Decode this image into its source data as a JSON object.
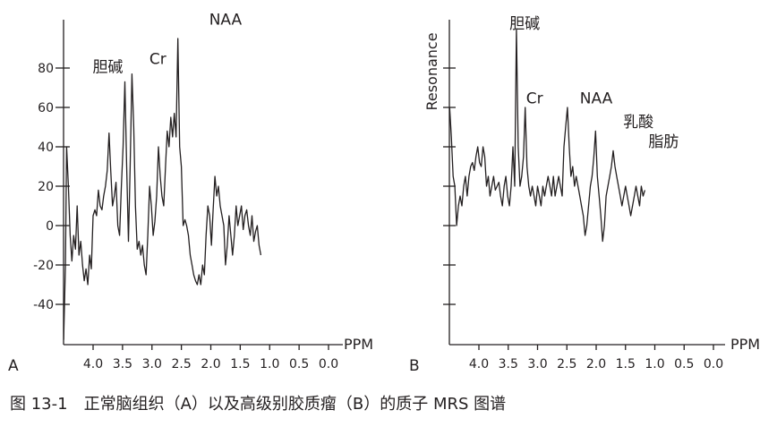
{
  "chart_data": [
    {
      "type": "line",
      "panel_label": "A",
      "xlabel": "PPM",
      "ylabel": "",
      "x_tick_labels": [
        "4.0",
        "3.5",
        "3.0",
        "2.5",
        "2.0",
        "1.5",
        "1.0",
        "0.5",
        "0.0"
      ],
      "y_tick_labels": [
        "80",
        "60",
        "40",
        "20",
        "0",
        "-20",
        "-40"
      ],
      "x_reversed": true,
      "xlim": [
        4.5,
        0.0
      ],
      "ylim": [
        -60,
        105
      ],
      "grid": false,
      "annotations": [
        {
          "text": "胆碱",
          "x": 3.75,
          "y": 78
        },
        {
          "text": "Cr",
          "x": 2.9,
          "y": 82
        },
        {
          "text": "NAA",
          "x": 1.75,
          "y": 102
        }
      ],
      "series": [
        {
          "values": [
            [
              4.5,
              -58
            ],
            [
              4.47,
              -20
            ],
            [
              4.45,
              40
            ],
            [
              4.42,
              20
            ],
            [
              4.39,
              -5
            ],
            [
              4.36,
              -18
            ],
            [
              4.33,
              -5
            ],
            [
              4.3,
              -12
            ],
            [
              4.27,
              10
            ],
            [
              4.24,
              -15
            ],
            [
              4.21,
              -8
            ],
            [
              4.18,
              -20
            ],
            [
              4.15,
              -28
            ],
            [
              4.12,
              -22
            ],
            [
              4.09,
              -30
            ],
            [
              4.06,
              -15
            ],
            [
              4.03,
              -22
            ],
            [
              4.0,
              5
            ],
            [
              3.97,
              8
            ],
            [
              3.94,
              5
            ],
            [
              3.91,
              18
            ],
            [
              3.88,
              10
            ],
            [
              3.85,
              8
            ],
            [
              3.82,
              15
            ],
            [
              3.79,
              20
            ],
            [
              3.76,
              28
            ],
            [
              3.73,
              47
            ],
            [
              3.7,
              28
            ],
            [
              3.67,
              10
            ],
            [
              3.64,
              15
            ],
            [
              3.61,
              22
            ],
            [
              3.58,
              0
            ],
            [
              3.55,
              -5
            ],
            [
              3.52,
              20
            ],
            [
              3.49,
              40
            ],
            [
              3.46,
              73
            ],
            [
              3.43,
              30
            ],
            [
              3.4,
              -8
            ],
            [
              3.37,
              30
            ],
            [
              3.34,
              77
            ],
            [
              3.31,
              50
            ],
            [
              3.28,
              10
            ],
            [
              3.25,
              -12
            ],
            [
              3.22,
              -8
            ],
            [
              3.19,
              -15
            ],
            [
              3.16,
              -10
            ],
            [
              3.13,
              -20
            ],
            [
              3.1,
              -25
            ],
            [
              3.07,
              -5
            ],
            [
              3.04,
              20
            ],
            [
              3.01,
              10
            ],
            [
              2.98,
              -5
            ],
            [
              2.95,
              2
            ],
            [
              2.92,
              15
            ],
            [
              2.89,
              40
            ],
            [
              2.86,
              25
            ],
            [
              2.83,
              15
            ],
            [
              2.8,
              10
            ],
            [
              2.77,
              30
            ],
            [
              2.74,
              48
            ],
            [
              2.71,
              40
            ],
            [
              2.68,
              55
            ],
            [
              2.65,
              45
            ],
            [
              2.62,
              57
            ],
            [
              2.59,
              45
            ],
            [
              2.56,
              95
            ],
            [
              2.53,
              40
            ],
            [
              2.5,
              30
            ],
            [
              2.47,
              0
            ],
            [
              2.44,
              3
            ],
            [
              2.41,
              0
            ],
            [
              2.38,
              -5
            ],
            [
              2.35,
              -15
            ],
            [
              2.32,
              -20
            ],
            [
              2.29,
              -25
            ],
            [
              2.26,
              -28
            ],
            [
              2.23,
              -30
            ],
            [
              2.2,
              -25
            ],
            [
              2.17,
              -30
            ],
            [
              2.14,
              -20
            ],
            [
              2.11,
              -25
            ],
            [
              2.08,
              -5
            ],
            [
              2.05,
              10
            ],
            [
              2.02,
              5
            ],
            [
              1.99,
              -10
            ],
            [
              1.96,
              8
            ],
            [
              1.93,
              25
            ],
            [
              1.9,
              15
            ],
            [
              1.87,
              20
            ],
            [
              1.84,
              10
            ],
            [
              1.81,
              5
            ],
            [
              1.78,
              0
            ],
            [
              1.75,
              -20
            ],
            [
              1.72,
              -10
            ],
            [
              1.69,
              5
            ],
            [
              1.66,
              -5
            ],
            [
              1.63,
              -15
            ],
            [
              1.6,
              -5
            ],
            [
              1.57,
              10
            ],
            [
              1.54,
              0
            ],
            [
              1.51,
              5
            ],
            [
              1.48,
              10
            ],
            [
              1.45,
              -2
            ],
            [
              1.42,
              5
            ],
            [
              1.39,
              8
            ],
            [
              1.36,
              0
            ],
            [
              1.33,
              -5
            ],
            [
              1.3,
              5
            ],
            [
              1.27,
              -8
            ],
            [
              1.24,
              -3
            ],
            [
              1.21,
              0
            ],
            [
              1.18,
              -10
            ],
            [
              1.15,
              -15
            ]
          ]
        }
      ]
    },
    {
      "type": "line",
      "panel_label": "B",
      "xlabel": "PPM",
      "ylabel": "Resonance",
      "x_tick_labels": [
        "4.0",
        "3.5",
        "3.0",
        "2.5",
        "2.0",
        "1.5",
        "1.0",
        "0.5",
        "0.0"
      ],
      "y_tick_labels": [],
      "x_reversed": true,
      "xlim": [
        4.5,
        0.0
      ],
      "grid": false,
      "annotations": [
        {
          "text": "胆碱",
          "x": 3.22,
          "y": 100
        },
        {
          "text": "Cr",
          "x": 3.05,
          "y": 62
        },
        {
          "text": "NAA",
          "x": 2.0,
          "y": 62
        },
        {
          "text": "乳酸",
          "x": 1.28,
          "y": 50
        },
        {
          "text": "脂肪",
          "x": 0.85,
          "y": 40
        }
      ],
      "series": [
        {
          "values": [
            [
              4.5,
              60
            ],
            [
              4.47,
              45
            ],
            [
              4.44,
              25
            ],
            [
              4.41,
              20
            ],
            [
              4.38,
              0
            ],
            [
              4.35,
              10
            ],
            [
              4.32,
              15
            ],
            [
              4.29,
              10
            ],
            [
              4.26,
              20
            ],
            [
              4.23,
              25
            ],
            [
              4.2,
              15
            ],
            [
              4.17,
              25
            ],
            [
              4.14,
              30
            ],
            [
              4.11,
              32
            ],
            [
              4.08,
              28
            ],
            [
              4.05,
              35
            ],
            [
              4.02,
              40
            ],
            [
              3.99,
              32
            ],
            [
              3.96,
              30
            ],
            [
              3.93,
              40
            ],
            [
              3.9,
              35
            ],
            [
              3.87,
              20
            ],
            [
              3.84,
              25
            ],
            [
              3.81,
              15
            ],
            [
              3.78,
              20
            ],
            [
              3.75,
              25
            ],
            [
              3.72,
              18
            ],
            [
              3.69,
              20
            ],
            [
              3.66,
              22
            ],
            [
              3.63,
              15
            ],
            [
              3.6,
              10
            ],
            [
              3.57,
              20
            ],
            [
              3.54,
              25
            ],
            [
              3.51,
              15
            ],
            [
              3.48,
              10
            ],
            [
              3.45,
              20
            ],
            [
              3.42,
              40
            ],
            [
              3.39,
              20
            ],
            [
              3.36,
              100
            ],
            [
              3.33,
              40
            ],
            [
              3.3,
              20
            ],
            [
              3.27,
              25
            ],
            [
              3.24,
              35
            ],
            [
              3.21,
              60
            ],
            [
              3.18,
              30
            ],
            [
              3.15,
              20
            ],
            [
              3.12,
              15
            ],
            [
              3.09,
              20
            ],
            [
              3.06,
              15
            ],
            [
              3.03,
              10
            ],
            [
              3.0,
              20
            ],
            [
              2.97,
              15
            ],
            [
              2.94,
              10
            ],
            [
              2.91,
              20
            ],
            [
              2.88,
              15
            ],
            [
              2.85,
              20
            ],
            [
              2.82,
              25
            ],
            [
              2.79,
              20
            ],
            [
              2.76,
              15
            ],
            [
              2.73,
              25
            ],
            [
              2.7,
              15
            ],
            [
              2.67,
              20
            ],
            [
              2.64,
              25
            ],
            [
              2.61,
              20
            ],
            [
              2.58,
              15
            ],
            [
              2.55,
              40
            ],
            [
              2.52,
              50
            ],
            [
              2.49,
              60
            ],
            [
              2.46,
              40
            ],
            [
              2.43,
              25
            ],
            [
              2.4,
              30
            ],
            [
              2.37,
              20
            ],
            [
              2.34,
              25
            ],
            [
              2.31,
              20
            ],
            [
              2.28,
              15
            ],
            [
              2.25,
              10
            ],
            [
              2.22,
              5
            ],
            [
              2.19,
              -5
            ],
            [
              2.16,
              0
            ],
            [
              2.13,
              10
            ],
            [
              2.1,
              20
            ],
            [
              2.07,
              25
            ],
            [
              2.04,
              35
            ],
            [
              2.01,
              48
            ],
            [
              1.98,
              25
            ],
            [
              1.95,
              15
            ],
            [
              1.92,
              5
            ],
            [
              1.89,
              -8
            ],
            [
              1.86,
              0
            ],
            [
              1.83,
              15
            ],
            [
              1.8,
              20
            ],
            [
              1.77,
              25
            ],
            [
              1.74,
              30
            ],
            [
              1.71,
              38
            ],
            [
              1.68,
              30
            ],
            [
              1.65,
              25
            ],
            [
              1.62,
              20
            ],
            [
              1.59,
              15
            ],
            [
              1.56,
              10
            ],
            [
              1.53,
              15
            ],
            [
              1.5,
              20
            ],
            [
              1.47,
              15
            ],
            [
              1.44,
              10
            ],
            [
              1.41,
              5
            ],
            [
              1.38,
              10
            ],
            [
              1.35,
              15
            ],
            [
              1.32,
              20
            ],
            [
              1.29,
              15
            ],
            [
              1.26,
              10
            ],
            [
              1.23,
              20
            ],
            [
              1.2,
              15
            ],
            [
              1.17,
              18
            ]
          ]
        }
      ]
    }
  ],
  "caption": "图 13-1　正常脑组织（A）以及高级别胶质瘤（B）的质子 MRS 图谱"
}
